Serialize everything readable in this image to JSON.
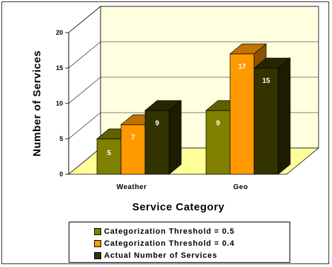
{
  "chart_data": {
    "type": "bar",
    "categories": [
      "Weather",
      "Geo"
    ],
    "series": [
      {
        "name": "Categorization Threshold = 0.5",
        "values": [
          5,
          9
        ],
        "color": "#808000"
      },
      {
        "name": "Categorization Threshold = 0.4",
        "values": [
          7,
          17
        ],
        "color": "#ff9900"
      },
      {
        "name": "Actual Number of Services",
        "values": [
          9,
          15
        ],
        "color": "#333300"
      }
    ],
    "xlabel": "Service Category",
    "ylabel": "Number of Services",
    "ylim": [
      0,
      20
    ],
    "yticks": [
      "0",
      "5",
      "10",
      "15",
      "20"
    ],
    "grid": true,
    "three_d": true,
    "legend_position": "bottom",
    "floor_color": "#ffff99",
    "wall_color": "#ffffe0"
  }
}
